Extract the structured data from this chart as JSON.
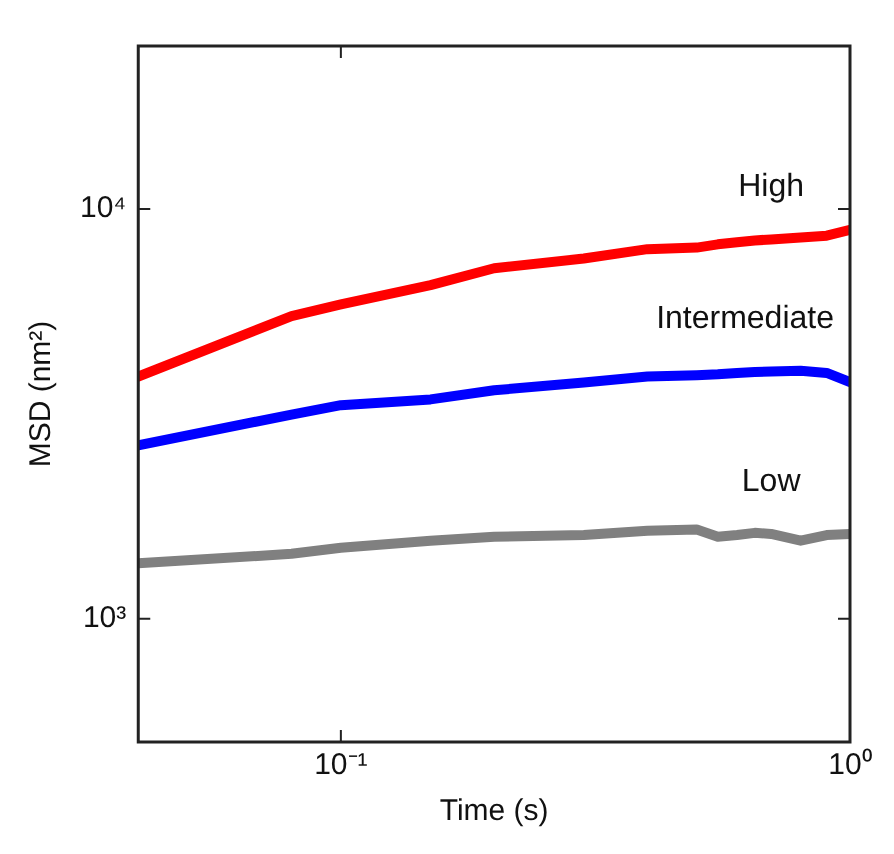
{
  "chart_data": {
    "type": "line",
    "xlabel": "Time (s)",
    "ylabel": "MSD (nm²)",
    "log": "xy",
    "xlim": [
      0.04,
      1
    ],
    "ylim": [
      500,
      25000
    ],
    "xticks": [
      {
        "value": 0.1,
        "label": "10⁻¹"
      },
      {
        "value": 1,
        "label": "10⁰"
      }
    ],
    "yticks": [
      {
        "value": 1000,
        "label": "10³"
      },
      {
        "value": 10000,
        "label": "10⁴"
      }
    ],
    "grid": false,
    "legend": false,
    "marker": "none",
    "line_style": "solid",
    "x": [
      0.04,
      0.08,
      0.1,
      0.15,
      0.2,
      0.3,
      0.4,
      0.5,
      0.55,
      0.6,
      0.65,
      0.7,
      0.8,
      0.9,
      1
    ],
    "series": [
      {
        "name": "High",
        "color": "#ff0000",
        "values": [
          3900,
          5480,
          5850,
          6520,
          7170,
          7570,
          7980,
          8050,
          8200,
          8300,
          8380,
          8430,
          8520,
          8610,
          8890
        ]
      },
      {
        "name": "Intermediate",
        "color": "#0000ff",
        "values": [
          2650,
          3150,
          3320,
          3430,
          3610,
          3770,
          3900,
          3930,
          3950,
          3980,
          4000,
          4010,
          4030,
          3980,
          3780
        ]
      },
      {
        "name": "Low",
        "color": "#808080",
        "values": [
          1365,
          1440,
          1490,
          1550,
          1585,
          1600,
          1640,
          1650,
          1585,
          1600,
          1620,
          1610,
          1550,
          1600,
          1610
        ]
      }
    ]
  }
}
